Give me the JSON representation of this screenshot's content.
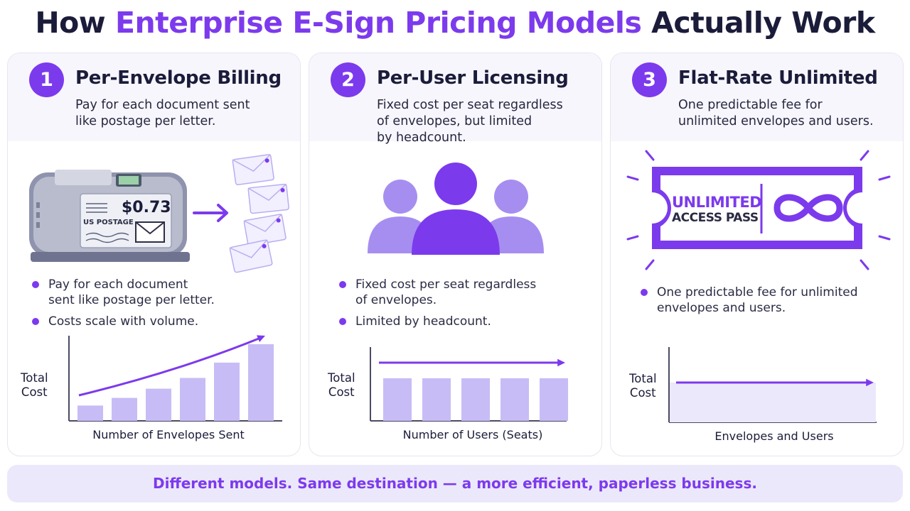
{
  "title": {
    "prefix": "How",
    "highlight": "Enterprise E-Sign Pricing Models",
    "suffix": "Actually Work"
  },
  "accent_color": "#7c3aed",
  "panels": [
    {
      "number": "1",
      "title": "Per-Envelope Billing",
      "desc_line1": "Pay for each document sent",
      "desc_line2": "like postage per letter.",
      "stamp_price": "$0.73",
      "stamp_label": "US POSTAGE",
      "bullets": [
        "Pay for each document sent like postage per letter.",
        "Costs scale with volume."
      ],
      "ylabel_line1": "Total",
      "ylabel_line2": "Cost",
      "xlabel": "Number of Envelopes Sent"
    },
    {
      "number": "2",
      "title": "Per-User Licensing",
      "desc_line1": "Fixed cost per seat regardless",
      "desc_line2": "of envelopes, but limited",
      "desc_line3": "by headcount.",
      "bullets": [
        "Fixed cost per seat regardless of envelopes.",
        "Limited by headcount."
      ],
      "ylabel_line1": "Total",
      "ylabel_line2": "Cost",
      "xlabel": "Number of Users (Seats)"
    },
    {
      "number": "3",
      "title": "Flat-Rate Unlimited",
      "desc_line1": "One predictable fee for",
      "desc_line2": "unlimited envelopes and users.",
      "pass_line1": "UNLIMITED",
      "pass_line2": "ACCESS PASS",
      "bullets": [
        "One predictable fee for unlimited envelopes and users."
      ],
      "ylabel_line1": "Total",
      "ylabel_line2": "Cost",
      "xlabel": "Envelopes and Users"
    }
  ],
  "chart_data": [
    {
      "type": "bar",
      "categories": [
        "1",
        "2",
        "3",
        "4",
        "5",
        "6"
      ],
      "values": [
        1,
        1.5,
        2.1,
        2.8,
        3.8,
        5.0
      ],
      "trend": "increasing",
      "xlabel": "Number of Envelopes Sent",
      "ylabel": "Total Cost"
    },
    {
      "type": "bar",
      "categories": [
        "1",
        "2",
        "3",
        "4",
        "5"
      ],
      "values": [
        3,
        3,
        3,
        3,
        3
      ],
      "trend": "flat",
      "xlabel": "Number of Users (Seats)",
      "ylabel": "Total Cost"
    },
    {
      "type": "area",
      "values": [
        1,
        1
      ],
      "trend": "flat",
      "xlabel": "Envelopes and Users",
      "ylabel": "Total Cost"
    }
  ],
  "footer": "Different models. Same destination — a more efficient, paperless business."
}
